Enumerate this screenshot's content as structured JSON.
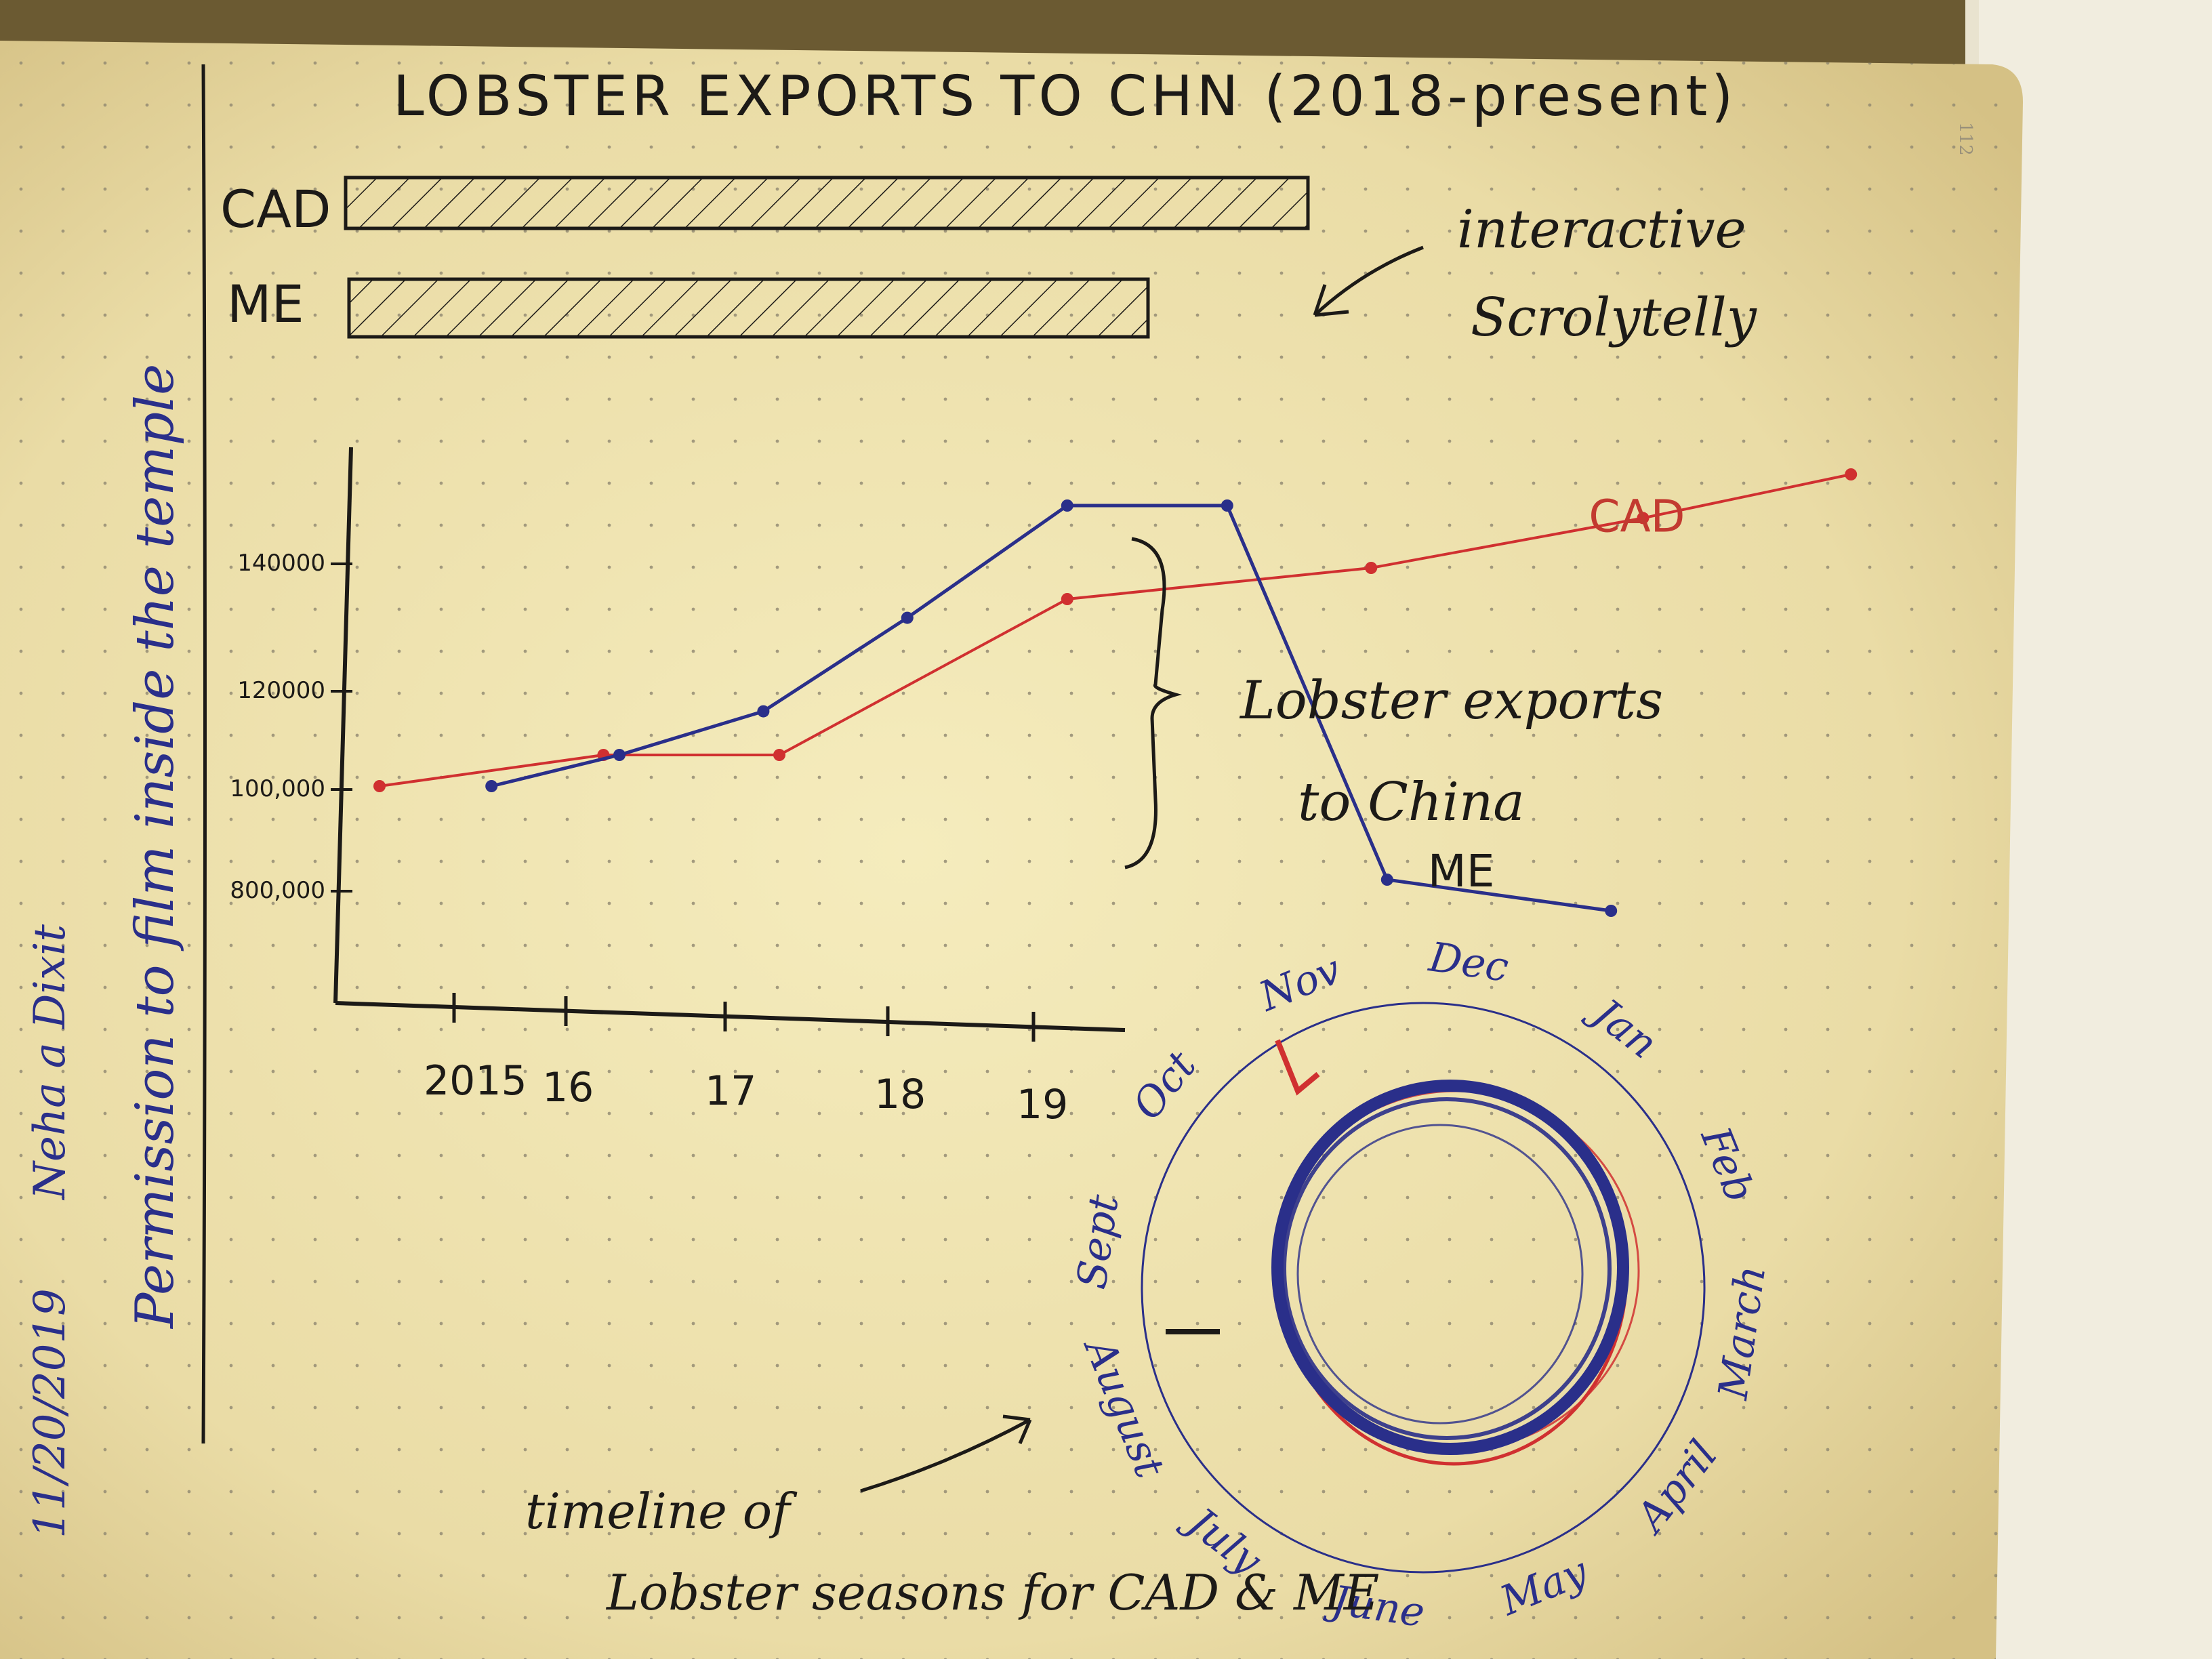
{
  "notebook": {
    "page_number": "112"
  },
  "sidebar": {
    "date": "11/20/2019",
    "author": "Neha a Dixit",
    "note": "Permission to film inside the temple"
  },
  "top_sketch": {
    "title": "LOBSTER EXPORTS TO CHN (2018-present)",
    "bar_labels": [
      "CAD",
      "ME"
    ],
    "bar_values": [
      1.0,
      0.83
    ],
    "annotation": [
      "interactive",
      "Scrolytelly"
    ]
  },
  "chart_data": {
    "type": "line",
    "title": "",
    "xlabel": "",
    "ylabel": "",
    "x_tick_labels": [
      "2015",
      "16",
      "17",
      "18",
      "19"
    ],
    "y_tick_labels": [
      "800,000",
      "100,000",
      "120000",
      "140000"
    ],
    "series": [
      {
        "name": "CAD",
        "color": "#d03030",
        "points": [
          [
            2014.75,
            100000
          ],
          [
            2015.45,
            105000
          ],
          [
            2016.0,
            105000
          ],
          [
            2016.9,
            130000
          ],
          [
            2017.85,
            135000
          ],
          [
            2018.7,
            143000
          ],
          [
            2019.35,
            150000
          ]
        ]
      },
      {
        "name": "ME",
        "color": "#2a2f8a",
        "points": [
          [
            2015.1,
            100000
          ],
          [
            2015.5,
            105000
          ],
          [
            2015.95,
            112000
          ],
          [
            2016.4,
            127000
          ],
          [
            2016.9,
            145000
          ],
          [
            2017.4,
            145000
          ],
          [
            2017.9,
            85000
          ],
          [
            2018.6,
            80000
          ]
        ]
      }
    ],
    "annotation": [
      "Lobster exports",
      "to China"
    ]
  },
  "radial": {
    "months": [
      "Nov",
      "Dec",
      "Jan",
      "Feb",
      "March",
      "April",
      "May",
      "June",
      "July",
      "August",
      "Sept",
      "Oct"
    ],
    "caption_top": "timeline of",
    "caption_bottom": "Lobster seasons for CAD & ME"
  },
  "colors": {
    "paper": "#f1e7b8",
    "ink": "#1c1a17",
    "blue_pen": "#2a2f8a",
    "red_pen": "#d03030"
  }
}
